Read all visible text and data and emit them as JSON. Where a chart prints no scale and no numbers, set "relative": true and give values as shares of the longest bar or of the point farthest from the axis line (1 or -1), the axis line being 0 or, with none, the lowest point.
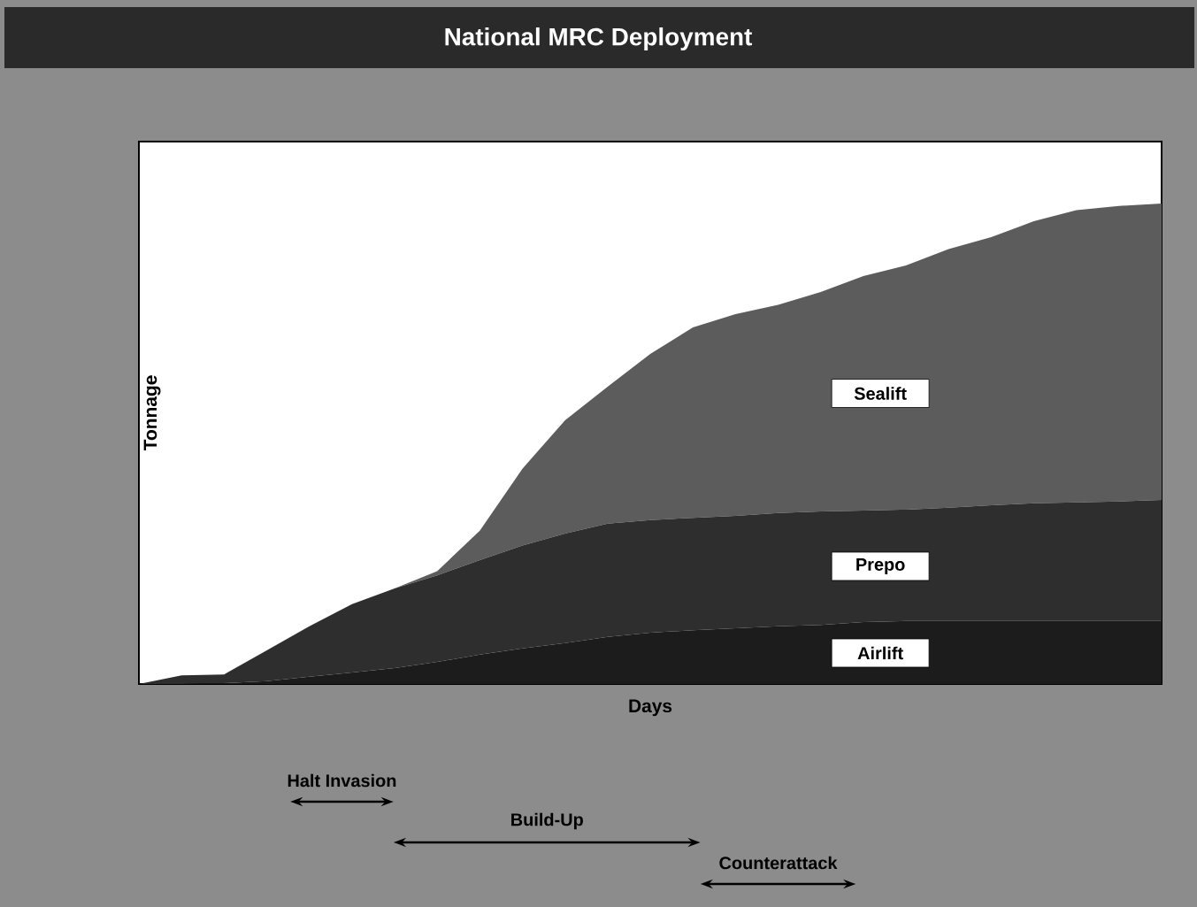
{
  "chart_data": {
    "type": "area",
    "title": "National MRC Deployment",
    "xlabel": "Days",
    "ylabel": "Tonnage",
    "relative": true,
    "stacked": true,
    "categories": [
      null,
      null,
      null,
      null,
      null,
      null,
      null,
      null,
      null,
      null,
      null,
      null,
      null,
      null,
      null,
      null,
      null,
      null,
      null,
      null,
      null,
      null,
      null,
      null,
      null
    ],
    "series": [
      {
        "name": "Airlift",
        "color": "#1c1c1c",
        "values": [
          0,
          0,
          0.002,
          0.006,
          0.015,
          0.024,
          0.033,
          0.046,
          0.061,
          0.074,
          0.085,
          0.098,
          0.107,
          0.112,
          0.116,
          0.12,
          0.123,
          0.129,
          0.131,
          0.131,
          0.131,
          0.131,
          0.131,
          0.131,
          0.131
        ]
      },
      {
        "name": "Prepo",
        "color": "#2e2e2e",
        "values": [
          0,
          0.018,
          0.018,
          0.064,
          0.105,
          0.142,
          0.166,
          0.18,
          0.197,
          0.214,
          0.228,
          0.236,
          0.234,
          0.234,
          0.234,
          0.236,
          0.236,
          0.232,
          0.232,
          0.236,
          0.241,
          0.245,
          0.247,
          0.249,
          0.252
        ]
      },
      {
        "name": "Sealift",
        "color": "#5c5c5c",
        "values": [
          0,
          0,
          0,
          0,
          0,
          0,
          0,
          0.009,
          0.061,
          0.16,
          0.236,
          0.285,
          0.346,
          0.396,
          0.42,
          0.433,
          0.457,
          0.488,
          0.508,
          0.538,
          0.558,
          0.587,
          0.608,
          0.615,
          0.617
        ]
      }
    ],
    "annotations": [
      "Halt Invasion",
      "Build-Up",
      "Counterattack"
    ]
  }
}
